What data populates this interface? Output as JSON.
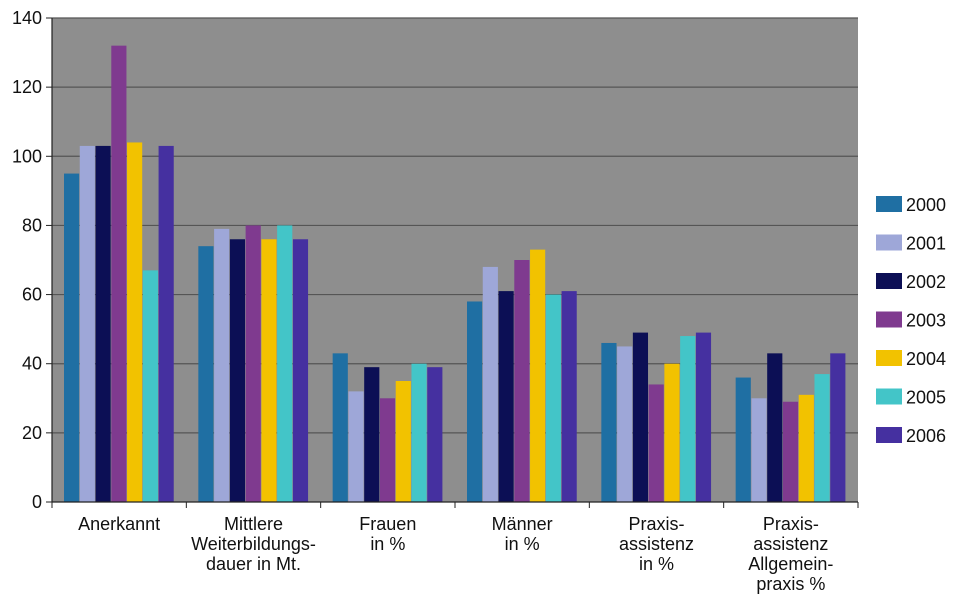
{
  "chart_data": {
    "type": "bar",
    "categories": [
      [
        "Anerkannt"
      ],
      [
        "Mittlere",
        "Weiterbildungs-",
        "dauer in Mt."
      ],
      [
        "Frauen",
        "in %"
      ],
      [
        "Männer",
        "in %"
      ],
      [
        "Praxis-",
        "assistenz",
        "in %"
      ],
      [
        "Praxis-",
        "assistenz",
        "Allgemein-",
        "praxis %"
      ]
    ],
    "series": [
      {
        "name": "2000",
        "color": "#1f6fa3",
        "values": [
          95,
          74,
          43,
          58,
          46,
          36
        ]
      },
      {
        "name": "2001",
        "color": "#9ea7d8",
        "values": [
          103,
          79,
          32,
          68,
          45,
          30
        ]
      },
      {
        "name": "2002",
        "color": "#0c0f55",
        "values": [
          103,
          76,
          39,
          61,
          49,
          43
        ]
      },
      {
        "name": "2003",
        "color": "#7f3a8f",
        "values": [
          132,
          80,
          30,
          70,
          34,
          29
        ]
      },
      {
        "name": "2004",
        "color": "#f2c200",
        "values": [
          104,
          76,
          35,
          73,
          40,
          31
        ]
      },
      {
        "name": "2005",
        "color": "#43c5c8",
        "values": [
          67,
          80,
          40,
          60,
          48,
          37
        ]
      },
      {
        "name": "2006",
        "color": "#4530a0",
        "values": [
          103,
          76,
          39,
          61,
          49,
          43
        ]
      }
    ],
    "ylim": [
      0,
      140
    ],
    "yticks": [
      0,
      20,
      40,
      60,
      80,
      100,
      120,
      140
    ],
    "grid": true,
    "legend": "right",
    "plot_background": "#8e8e8e",
    "gridline_color": "#555555"
  }
}
